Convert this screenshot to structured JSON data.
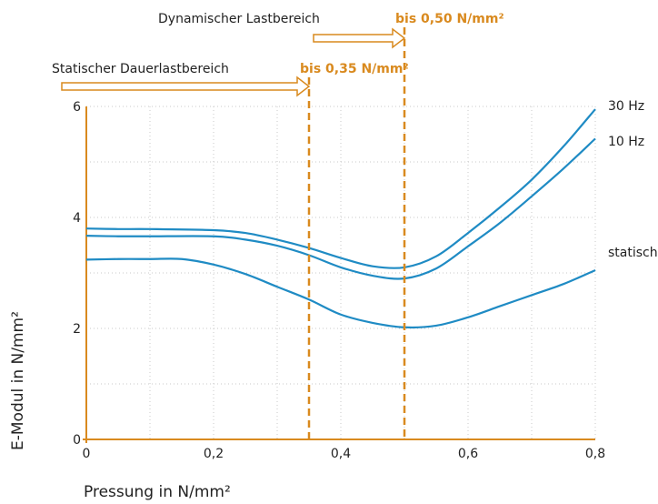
{
  "chart_data": {
    "type": "line",
    "xlabel": "Pressung in N/mm²",
    "ylabel": "E-Modul in N/mm²",
    "xlim": [
      0,
      0.8
    ],
    "ylim": [
      0,
      6
    ],
    "x_ticks": [
      "0",
      "0,2",
      "0,4",
      "0,6",
      "0,8"
    ],
    "y_ticks": [
      "0",
      "2",
      "4",
      "6"
    ],
    "grid": true,
    "colors": {
      "axis": "#d98a1f",
      "series": "#1f8bc4",
      "grid": "#c8c8c8"
    },
    "series": [
      {
        "name": "30 Hz",
        "points": [
          [
            0,
            3.8
          ],
          [
            0.05,
            3.79
          ],
          [
            0.1,
            3.79
          ],
          [
            0.2,
            3.77
          ],
          [
            0.25,
            3.72
          ],
          [
            0.3,
            3.6
          ],
          [
            0.35,
            3.45
          ],
          [
            0.4,
            3.27
          ],
          [
            0.45,
            3.12
          ],
          [
            0.5,
            3.1
          ],
          [
            0.55,
            3.3
          ],
          [
            0.6,
            3.72
          ],
          [
            0.65,
            4.18
          ],
          [
            0.7,
            4.68
          ],
          [
            0.75,
            5.28
          ],
          [
            0.8,
            5.95
          ]
        ]
      },
      {
        "name": "10 Hz",
        "points": [
          [
            0,
            3.67
          ],
          [
            0.05,
            3.66
          ],
          [
            0.1,
            3.66
          ],
          [
            0.2,
            3.66
          ],
          [
            0.25,
            3.6
          ],
          [
            0.3,
            3.49
          ],
          [
            0.35,
            3.32
          ],
          [
            0.4,
            3.1
          ],
          [
            0.45,
            2.95
          ],
          [
            0.5,
            2.9
          ],
          [
            0.55,
            3.08
          ],
          [
            0.6,
            3.48
          ],
          [
            0.65,
            3.9
          ],
          [
            0.7,
            4.38
          ],
          [
            0.75,
            4.88
          ],
          [
            0.8,
            5.42
          ]
        ]
      },
      {
        "name": "statisch",
        "points": [
          [
            0,
            3.24
          ],
          [
            0.05,
            3.25
          ],
          [
            0.1,
            3.25
          ],
          [
            0.15,
            3.25
          ],
          [
            0.2,
            3.15
          ],
          [
            0.25,
            2.98
          ],
          [
            0.3,
            2.75
          ],
          [
            0.35,
            2.52
          ],
          [
            0.4,
            2.25
          ],
          [
            0.45,
            2.1
          ],
          [
            0.5,
            2.02
          ],
          [
            0.55,
            2.05
          ],
          [
            0.6,
            2.2
          ],
          [
            0.65,
            2.4
          ],
          [
            0.7,
            2.6
          ],
          [
            0.75,
            2.8
          ],
          [
            0.8,
            3.05
          ]
        ]
      }
    ],
    "annotations": {
      "static": {
        "label": "Statischer Dauerlastbereich",
        "limit_label": "bis 0,35 N/mm²",
        "x": 0.35
      },
      "dynamic": {
        "label": "Dynamischer Lastbereich",
        "limit_label": "bis 0,50 N/mm²",
        "x": 0.5
      }
    }
  }
}
